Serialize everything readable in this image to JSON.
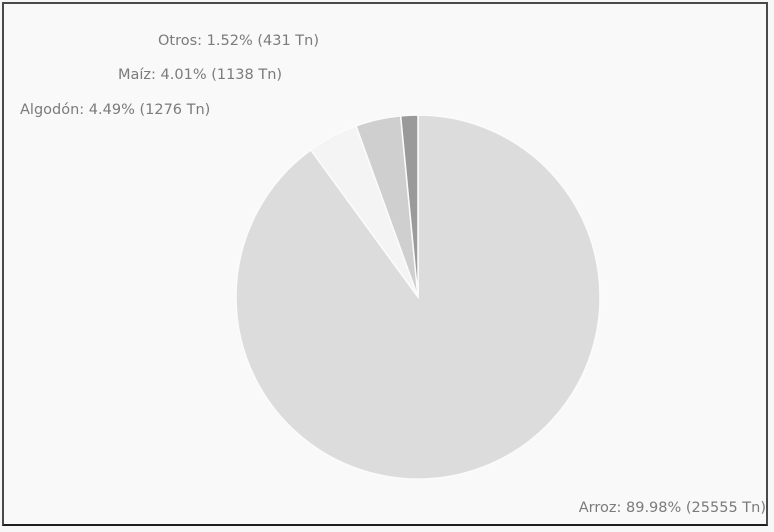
{
  "chart_data": {
    "type": "pie",
    "title": "",
    "slices": [
      {
        "name": "Arroz",
        "percent": 89.98,
        "value": 25555,
        "unit": "Tn",
        "label": "Arroz: 89.98% (25555 Tn)",
        "color": "#dcdcdc"
      },
      {
        "name": "Algodón",
        "percent": 4.49,
        "value": 1276,
        "unit": "Tn",
        "label": "Algodón: 4.49% (1276 Tn)",
        "color": "#f4f4f4"
      },
      {
        "name": "Maíz",
        "percent": 4.01,
        "value": 1138,
        "unit": "Tn",
        "label": "Maíz: 4.01% (1138 Tn)",
        "color": "#cfcfcf"
      },
      {
        "name": "Otros",
        "percent": 1.52,
        "value": 431,
        "unit": "Tn",
        "label": "Otros: 1.52% (431 Tn)",
        "color": "#9a9a9a"
      }
    ],
    "label_color": "#7b7b7b",
    "start": "top",
    "direction": "clockwise"
  }
}
